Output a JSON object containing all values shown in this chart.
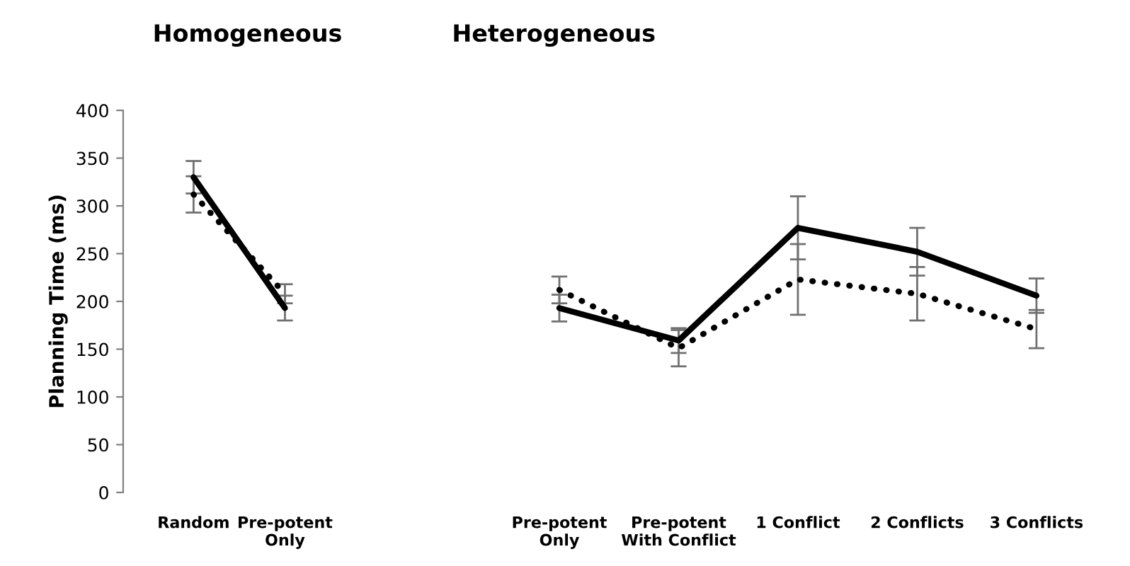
{
  "chart_data": [
    {
      "type": "line",
      "title": "Homogeneous",
      "ylabel": "Planning Time (ms)",
      "categories": [
        "Random",
        "Pre-potent\nOnly"
      ],
      "ylim": [
        0,
        400
      ],
      "yticks": [
        0,
        50,
        100,
        150,
        200,
        250,
        300,
        350,
        400
      ],
      "grid": false,
      "series": [
        {
          "color": "#000000",
          "line_style": "solid",
          "values": [
            330,
            193
          ],
          "errors": [
            17,
            13
          ]
        },
        {
          "color": "#000000",
          "line_style": "dotted",
          "values": [
            312,
            208
          ],
          "errors": [
            19,
            10
          ]
        }
      ]
    },
    {
      "type": "line",
      "title": "Heterogeneous",
      "categories": [
        "Pre-potent\nOnly",
        "Pre-potent\nWith Conflict",
        "1 Conflict",
        "2 Conflicts",
        "3 Conflicts"
      ],
      "ylim": [
        0,
        400
      ],
      "tick_labels": "x",
      "grid": false,
      "series": [
        {
          "color": "#000000",
          "line_style": "solid",
          "values": [
            193,
            159,
            277,
            252,
            206
          ],
          "errors": [
            14,
            13,
            33,
            25,
            18
          ]
        },
        {
          "color": "#000000",
          "line_style": "dotted",
          "values": [
            212,
            151,
            223,
            208,
            171
          ],
          "errors": [
            14,
            19,
            37,
            28,
            20
          ]
        }
      ]
    }
  ]
}
